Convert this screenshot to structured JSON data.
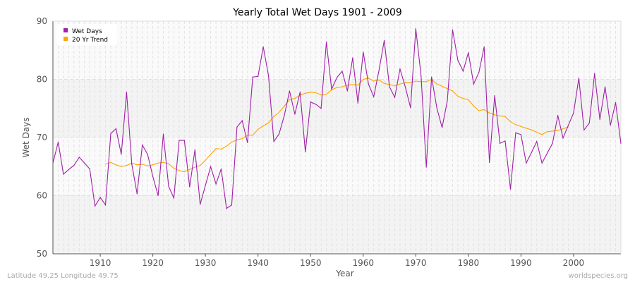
{
  "chart_data": {
    "type": "line",
    "title": "Yearly Total Wet Days 1901 - 2009",
    "xlabel": "Year",
    "ylabel": "Wet Days",
    "xlim": [
      1901,
      2009
    ],
    "ylim": [
      50,
      90
    ],
    "x_ticks": [
      1910,
      1920,
      1930,
      1940,
      1950,
      1960,
      1970,
      1980,
      1990,
      2000
    ],
    "y_ticks": [
      50,
      60,
      70,
      80,
      90
    ],
    "grid": true,
    "legend_position": "top-left",
    "x_start": 1901,
    "series": [
      {
        "name": "Wet Days",
        "color": "#a020a8",
        "values": [
          65.6,
          69.2,
          63.7,
          64.5,
          65.2,
          66.6,
          65.6,
          64.6,
          58.2,
          59.7,
          58.4,
          70.7,
          71.5,
          67.1,
          77.8,
          65.4,
          60.3,
          68.7,
          67.1,
          63.3,
          60.0,
          70.6,
          61.6,
          59.6,
          69.5,
          69.5,
          61.5,
          67.9,
          58.5,
          61.8,
          65.0,
          62.0,
          64.6,
          57.8,
          58.4,
          71.8,
          72.9,
          69.1,
          80.4,
          80.5,
          85.6,
          80.6,
          69.3,
          70.6,
          73.8,
          78.0,
          74.0,
          77.8,
          67.5,
          76.1,
          75.7,
          75.0,
          86.4,
          78.3,
          80.3,
          81.4,
          78.0,
          83.7,
          75.9,
          84.7,
          79.2,
          77.0,
          81.5,
          86.7,
          78.7,
          76.9,
          81.8,
          78.7,
          75.1,
          88.7,
          80.6,
          64.9,
          80.4,
          75.1,
          71.7,
          76.3,
          88.5,
          83.3,
          81.4,
          84.6,
          79.2,
          81.2,
          85.6,
          65.7,
          77.2,
          69.0,
          69.4,
          61.1,
          70.8,
          70.5,
          65.6,
          67.4,
          69.3,
          65.6,
          67.3,
          69.0,
          73.8,
          69.9,
          72.1,
          74.2,
          80.2,
          71.3,
          72.5,
          81.0,
          73.1,
          78.7,
          72.1,
          76.0,
          69.0
        ]
      },
      {
        "name": "20 Yr Trend",
        "color": "#ffa500",
        "values": [
          null,
          null,
          null,
          null,
          null,
          null,
          null,
          null,
          null,
          null,
          65.4,
          65.7,
          65.3,
          65.0,
          65.2,
          65.6,
          65.3,
          65.4,
          65.1,
          65.3,
          65.6,
          65.7,
          65.5,
          64.7,
          64.3,
          64.1,
          64.5,
          64.9,
          65.2,
          66.1,
          67.1,
          68.1,
          68.0,
          68.5,
          69.2,
          69.6,
          69.8,
          70.4,
          70.4,
          71.4,
          72.0,
          72.5,
          73.6,
          74.3,
          75.4,
          76.5,
          76.7,
          77.3,
          77.6,
          77.8,
          77.7,
          77.3,
          77.4,
          78.2,
          78.6,
          78.7,
          79.0,
          79.1,
          79.0,
          80.0,
          80.2,
          79.7,
          79.9,
          79.3,
          79.1,
          78.9,
          79.2,
          79.4,
          79.4,
          79.7,
          79.6,
          79.6,
          80.0,
          79.2,
          78.8,
          78.4,
          78.0,
          77.1,
          76.7,
          76.5,
          75.4,
          74.6,
          74.8,
          74.2,
          73.9,
          73.7,
          73.6,
          72.7,
          72.2,
          71.9,
          71.6,
          71.3,
          70.9,
          70.5,
          71.0,
          71.1,
          71.2,
          71.5,
          71.8,
          null,
          null,
          null,
          null,
          null,
          null,
          null,
          null,
          null,
          null
        ]
      }
    ]
  },
  "footer": {
    "location": "Latitude 49.25 Longitude 49.75",
    "source": "worldspecies.org"
  }
}
